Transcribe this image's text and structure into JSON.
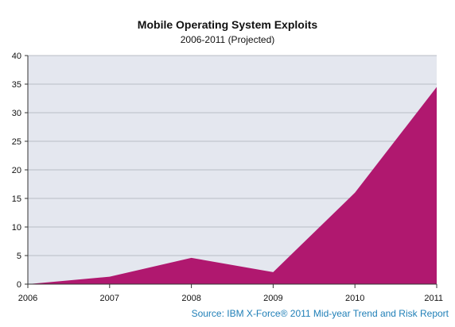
{
  "chart_data": {
    "type": "area",
    "title": "Mobile Operating System Exploits",
    "subtitle": "2006-2011 (Projected)",
    "xlabel": "",
    "ylabel": "",
    "x": [
      "2006",
      "2007",
      "2008",
      "2009",
      "2010",
      "2011"
    ],
    "series": [
      {
        "values": [
          0,
          1.3,
          4.6,
          2.1,
          16,
          34.5
        ]
      }
    ],
    "ylim": [
      0,
      40
    ],
    "yticks": [
      "0",
      "5",
      "10",
      "15",
      "20",
      "25",
      "30",
      "35",
      "40"
    ],
    "grid": true,
    "legend": "none",
    "colors": {
      "area": "#b0186f",
      "plot_background": "#e4e7ef",
      "gridline": "#b9bcc4",
      "source": "#1f7fb7"
    }
  },
  "source": "Source: IBM X-Force® 2011 Mid-year Trend and Risk Report"
}
